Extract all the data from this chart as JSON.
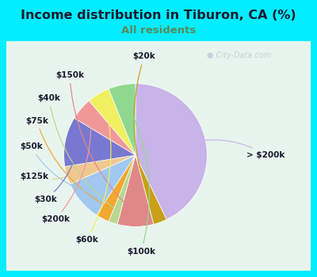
{
  "title": "Income distribution in Tiburon, CA (%)",
  "subtitle": "All residents",
  "title_color": "#1a1a2e",
  "subtitle_color": "#5a8a5a",
  "background_outer": "#00eeff",
  "watermark": "City-Data.com",
  "labels": [
    "> $200k",
    "$20k",
    "$150k",
    "$40k",
    "$75k",
    "$50k",
    "$125k",
    "$30k",
    "$200k",
    "$60k",
    "$100k"
  ],
  "sizes": [
    42,
    3,
    8,
    2,
    3,
    9,
    4,
    11,
    5,
    5,
    6
  ],
  "colors": [
    "#c8b4e8",
    "#c8a018",
    "#e08888",
    "#b8d890",
    "#f0a830",
    "#a0c8f0",
    "#f0c890",
    "#7878d0",
    "#f09898",
    "#f0f060",
    "#90d890"
  ],
  "line_colors": [
    "#c8b4e8",
    "#c8a018",
    "#e08888",
    "#c8d890",
    "#f0a830",
    "#a0c8f0",
    "#f0c890",
    "#7878d0",
    "#f09898",
    "#f0f060",
    "#90d890"
  ],
  "startangle": 90,
  "label_fontsize": 7.5
}
